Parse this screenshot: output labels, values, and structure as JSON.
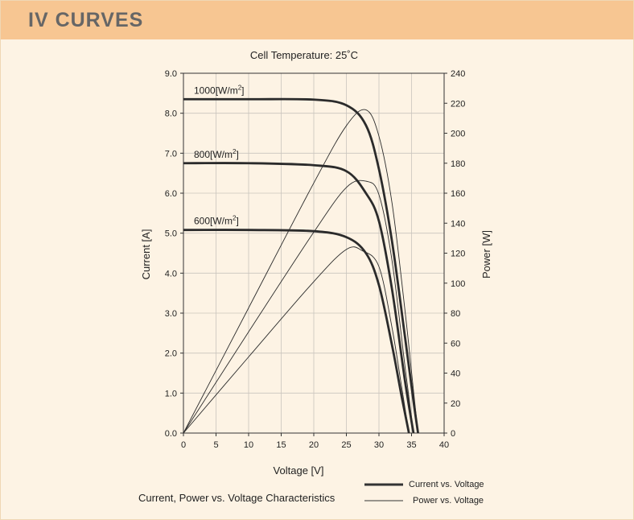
{
  "header": {
    "title": "IV CURVES"
  },
  "chart_data": {
    "type": "line",
    "title": "Cell Temperature:  25˚C",
    "subtitle": "Current, Power vs. Voltage Characteristics",
    "xlabel": "Voltage [V]",
    "ylabel_left": "Current [A]",
    "ylabel_right": "Power [W]",
    "xlim": [
      0,
      40
    ],
    "ylim_left": [
      0,
      9
    ],
    "ylim_right": [
      0,
      240
    ],
    "x_ticks": [
      "0",
      "5",
      "10",
      "15",
      "20",
      "25",
      "30",
      "35",
      "40"
    ],
    "y_left_ticks": [
      "0.0",
      "1.0",
      "2.0",
      "3.0",
      "4.0",
      "5.0",
      "6.0",
      "7.0",
      "8.0",
      "9.0"
    ],
    "y_right_ticks": [
      "0",
      "20",
      "40",
      "60",
      "80",
      "100",
      "120",
      "140",
      "160",
      "180",
      "200",
      "220",
      "240"
    ],
    "grid": true,
    "legend": [
      {
        "label": "Current vs. Voltage",
        "style": "thick"
      },
      {
        "label": "Power vs. Voltage",
        "style": "thin"
      }
    ],
    "series": [
      {
        "name": "1000[W/m²]",
        "label_main": "1000[W/m",
        "label_sup": "2",
        "label_end": "]",
        "current_points": [
          [
            0,
            8.35
          ],
          [
            10,
            8.35
          ],
          [
            20,
            8.34
          ],
          [
            25,
            8.2
          ],
          [
            28,
            7.7
          ],
          [
            30,
            6.6
          ],
          [
            32,
            4.8
          ],
          [
            34,
            2.4
          ],
          [
            35.3,
            0.8
          ],
          [
            36.0,
            0.0
          ]
        ],
        "power_points": [
          [
            0,
            0
          ],
          [
            10,
            83.5
          ],
          [
            20,
            166.8
          ],
          [
            25,
            205
          ],
          [
            28,
            215.6
          ],
          [
            30,
            198
          ],
          [
            32,
            153.6
          ],
          [
            34,
            81.6
          ],
          [
            35.3,
            28.2
          ],
          [
            36.0,
            0
          ]
        ]
      },
      {
        "name": "800[W/m²]",
        "label_main": "800[W/m",
        "label_sup": "2",
        "label_end": "]",
        "current_points": [
          [
            0,
            6.75
          ],
          [
            10,
            6.75
          ],
          [
            20,
            6.7
          ],
          [
            25,
            6.55
          ],
          [
            28,
            6.0
          ],
          [
            30,
            5.3
          ],
          [
            32,
            3.6
          ],
          [
            34,
            1.3
          ],
          [
            35.3,
            0.0
          ]
        ],
        "power_points": [
          [
            0,
            0
          ],
          [
            10,
            67.5
          ],
          [
            20,
            134
          ],
          [
            25,
            163.8
          ],
          [
            28,
            168
          ],
          [
            30,
            159
          ],
          [
            32,
            115.2
          ],
          [
            34,
            44.2
          ],
          [
            35.3,
            0
          ]
        ]
      },
      {
        "name": "600[W/m²]",
        "label_main": "600[W/m",
        "label_sup": "2",
        "label_end": "]",
        "current_points": [
          [
            0,
            5.08
          ],
          [
            10,
            5.08
          ],
          [
            20,
            5.05
          ],
          [
            25,
            4.9
          ],
          [
            28,
            4.5
          ],
          [
            30,
            3.7
          ],
          [
            32,
            2.2
          ],
          [
            33.5,
            0.9
          ],
          [
            34.6,
            0.0
          ]
        ],
        "power_points": [
          [
            0,
            0
          ],
          [
            10,
            50.8
          ],
          [
            20,
            101
          ],
          [
            25,
            122.5
          ],
          [
            27.5,
            121.5
          ],
          [
            30,
            111
          ],
          [
            32,
            70.4
          ],
          [
            33.5,
            30.2
          ],
          [
            34.6,
            0
          ]
        ]
      }
    ]
  }
}
